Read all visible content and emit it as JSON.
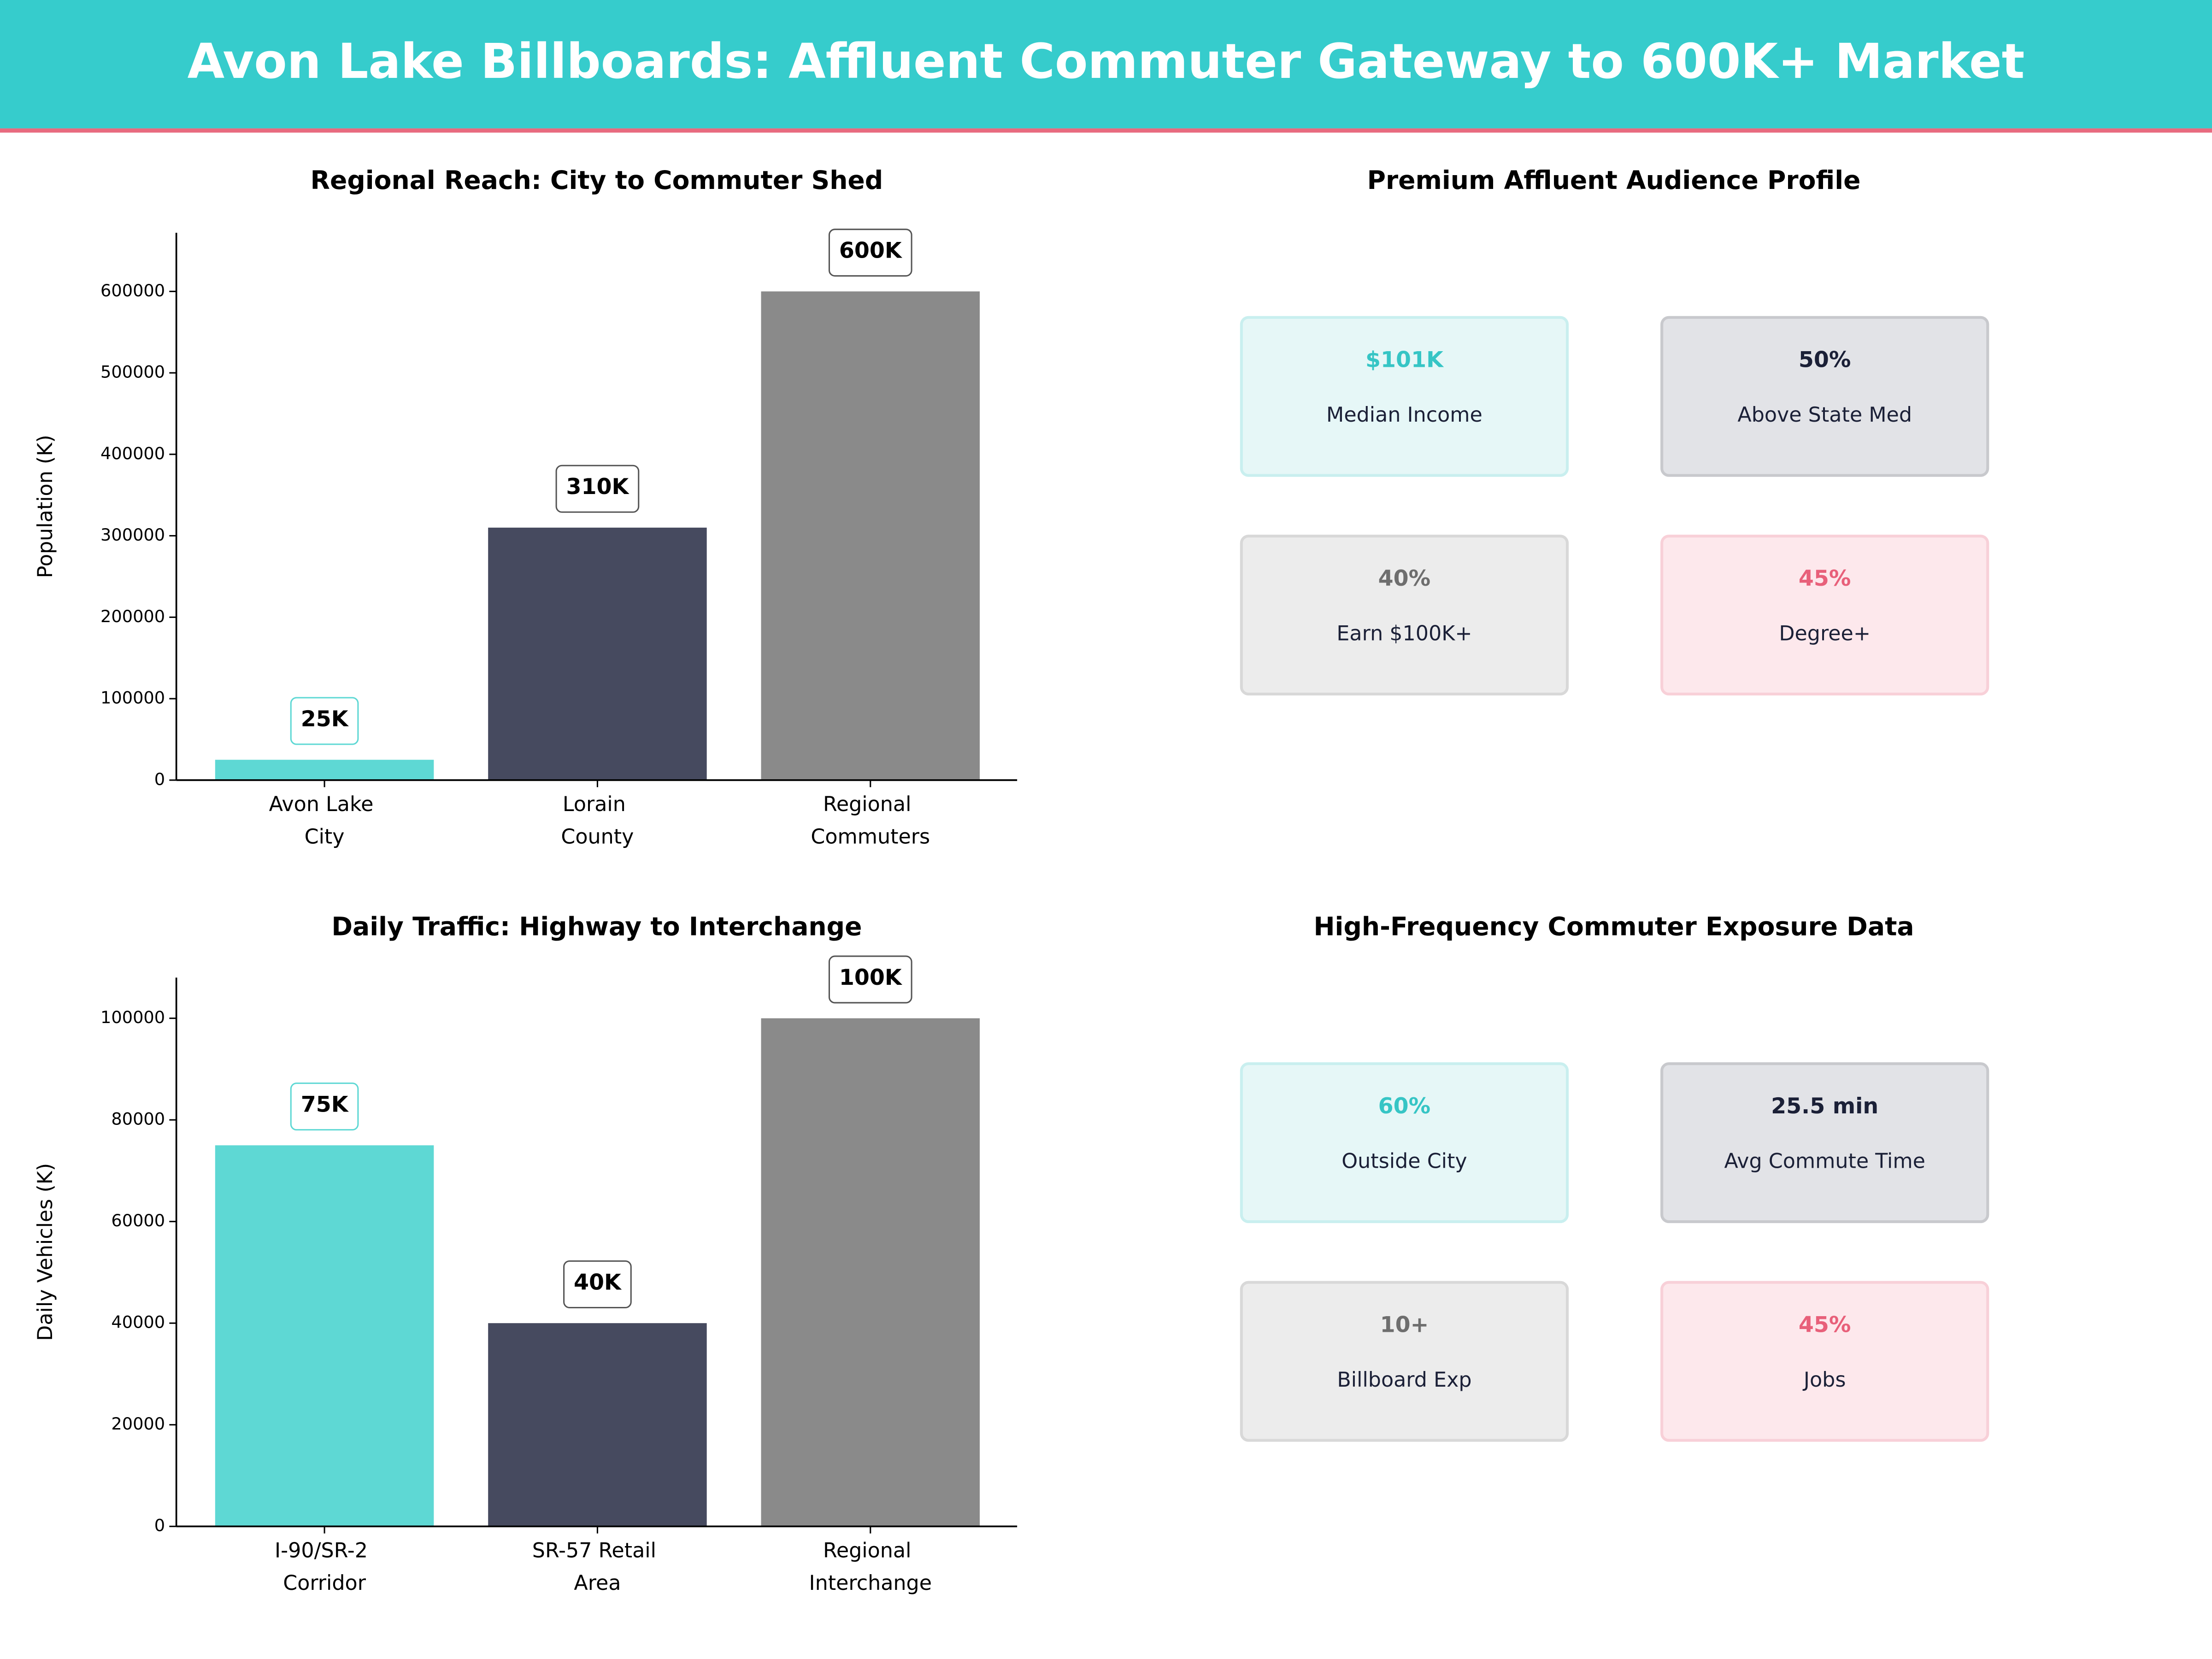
{
  "header": {
    "title": "Avon Lake Billboards: Affluent Commuter Gateway to 600K+ Market"
  },
  "chart_data": [
    {
      "type": "bar",
      "title": "Regional Reach: City to Commuter Shed",
      "ylabel": "Population (K)",
      "categories": [
        "Avon Lake City",
        "Lorain County",
        "Regional Commuters"
      ],
      "values": [
        25000,
        310000,
        600000
      ],
      "value_labels": [
        "25K",
        "310K",
        "600K"
      ],
      "colors": [
        "#5ed8d4",
        "#464a5f",
        "#8a8a8a"
      ],
      "ylim": [
        0,
        672000
      ],
      "yticks": [
        0,
        100000,
        200000,
        300000,
        400000,
        500000,
        600000
      ]
    },
    {
      "type": "bar",
      "title": "Daily Traffic: Highway to Interchange",
      "ylabel": "Daily Vehicles (K)",
      "categories": [
        "I-90/SR-2 Corridor",
        "SR-57 Retail Area",
        "Regional Interchange"
      ],
      "values": [
        75000,
        40000,
        100000
      ],
      "value_labels": [
        "75K",
        "40K",
        "100K"
      ],
      "colors": [
        "#5ed8d4",
        "#464a5f",
        "#8a8a8a"
      ],
      "ylim": [
        0,
        108000
      ],
      "yticks": [
        0,
        20000,
        40000,
        60000,
        80000,
        100000
      ]
    }
  ],
  "panels": [
    {
      "title": "Premium Affluent Audience Profile",
      "cards": [
        {
          "value": "$101K",
          "label": "Median Income"
        },
        {
          "value": "50%",
          "label": "Above State Med"
        },
        {
          "value": "40%",
          "label": "Earn $100K+"
        },
        {
          "value": "45%",
          "label": "Degree+"
        }
      ]
    },
    {
      "title": "High-Frequency Commuter Exposure Data",
      "cards": [
        {
          "value": "60%",
          "label": "Outside City"
        },
        {
          "value": "25.5 min",
          "label": "Avg Commute Time"
        },
        {
          "value": "10+",
          "label": "Billboard Exp"
        },
        {
          "value": "45%",
          "label": "Jobs"
        }
      ]
    }
  ]
}
